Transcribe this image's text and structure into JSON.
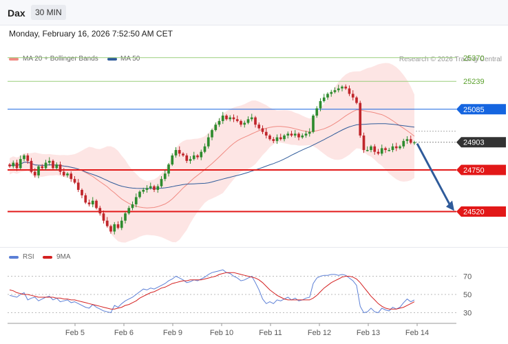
{
  "header": {
    "symbol": "Dax",
    "timeframe": "30 MIN",
    "timestamp": "Monday, February 16, 2026 7:52:50 AM CET"
  },
  "legend": {
    "ma20_label": "MA 20 + Bollinger Bands",
    "ma50_label": "MA 50",
    "credit": "Research © 2026 Trading Central",
    "rsi_label": "RSI",
    "rsi_ma_label": "9MA"
  },
  "colors": {
    "ma20": "#f08a82",
    "ma50": "#2f5b9a",
    "band_fill": "#fde0df",
    "up": "#2e8b2e",
    "down": "#c0262b",
    "rsi": "#5b7fd6",
    "rsi_ma": "#d42020",
    "arrow": "#2f5b9a"
  },
  "chart_data": [
    {
      "type": "candlestick",
      "title": "",
      "x_ticks": [
        "Feb 5",
        "Feb 6",
        "Feb 9",
        "Feb 10",
        "Feb 11",
        "Feb 12",
        "Feb 13",
        "Feb 14"
      ],
      "levels": [
        {
          "value": 25370,
          "label": "25370",
          "kind": "resistance-light",
          "color": "#9acd7a"
        },
        {
          "value": 25239,
          "label": "25239",
          "kind": "resistance-light",
          "color": "#9acd7a"
        },
        {
          "value": 25085,
          "label": "25085",
          "kind": "pivot",
          "color": "#1565e0"
        },
        {
          "value": 24903,
          "label": "24903",
          "kind": "last-price",
          "color": "#333333"
        },
        {
          "value": 24750,
          "label": "24750",
          "kind": "support",
          "color": "#e21818"
        },
        {
          "value": 24520,
          "label": "24520",
          "kind": "support",
          "color": "#e21818"
        }
      ],
      "forecast_arrow": {
        "from": 24903,
        "to": 24520,
        "direction": "down"
      },
      "closes": [
        24770,
        24790,
        24760,
        24810,
        24830,
        24800,
        24740,
        24720,
        24770,
        24760,
        24790,
        24800,
        24760,
        24780,
        24740,
        24720,
        24730,
        24700,
        24680,
        24640,
        24610,
        24570,
        24560,
        24580,
        24540,
        24510,
        24470,
        24440,
        24410,
        24450,
        24430,
        24470,
        24510,
        24540,
        24560,
        24600,
        24630,
        24640,
        24650,
        24660,
        24640,
        24660,
        24700,
        24730,
        24780,
        24830,
        24860,
        24840,
        24830,
        24800,
        24810,
        24830,
        24820,
        24850,
        24880,
        24930,
        24970,
        25000,
        25020,
        25050,
        25030,
        25040,
        25030,
        25020,
        25000,
        25010,
        25030,
        25040,
        25000,
        24980,
        24960,
        24940,
        24920,
        24910,
        24930,
        24920,
        24940,
        24950,
        24940,
        24950,
        24930,
        24940,
        24950,
        24960,
        25050,
        25090,
        25130,
        25150,
        25170,
        25180,
        25190,
        25200,
        25210,
        25200,
        25170,
        25150,
        25120,
        24940,
        24860,
        24860,
        24880,
        24850,
        24840,
        24870,
        24860,
        24860,
        24880,
        24870,
        24880,
        24910,
        24920,
        24900,
        24903
      ],
      "ylim": [
        24380,
        25450
      ]
    },
    {
      "type": "line",
      "title": "",
      "series": [
        {
          "name": "RSI",
          "values": [
            49,
            48,
            47,
            50,
            52,
            44,
            46,
            47,
            43,
            45,
            47,
            48,
            44,
            46,
            42,
            43,
            44,
            41,
            42,
            40,
            38,
            36,
            35,
            39,
            36,
            34,
            32,
            31,
            30,
            38,
            36,
            40,
            43,
            45,
            47,
            50,
            53,
            56,
            55,
            57,
            56,
            58,
            60,
            62,
            65,
            67,
            70,
            68,
            66,
            63,
            64,
            66,
            65,
            67,
            69,
            72,
            74,
            75,
            76,
            77,
            74,
            73,
            70,
            68,
            65,
            66,
            68,
            70,
            63,
            55,
            45,
            40,
            42,
            40,
            44,
            43,
            45,
            47,
            44,
            46,
            43,
            44,
            46,
            47,
            62,
            68,
            70,
            71,
            71,
            72,
            72,
            71,
            72,
            71,
            68,
            65,
            60,
            37,
            30,
            31,
            35,
            31,
            30,
            35,
            33,
            32,
            36,
            34,
            36,
            41,
            45,
            42,
            44
          ]
        },
        {
          "name": "9MA",
          "values": [
            55,
            54,
            52,
            51,
            50,
            50,
            49,
            48,
            47,
            47,
            47,
            47,
            47,
            46,
            46,
            45,
            45,
            44,
            44,
            43,
            42,
            41,
            40,
            39,
            38,
            37,
            36,
            35,
            34,
            34,
            35,
            36,
            38,
            39,
            41,
            43,
            46,
            48,
            50,
            52,
            53,
            55,
            57,
            58,
            60,
            62,
            63,
            64,
            65,
            65,
            66,
            66,
            66,
            66,
            67,
            68,
            69,
            70,
            72,
            73,
            74,
            74,
            74,
            73,
            72,
            71,
            70,
            69,
            68,
            66,
            63,
            59,
            55,
            52,
            49,
            47,
            45,
            44,
            44,
            44,
            44,
            44,
            44,
            44,
            46,
            49,
            53,
            57,
            60,
            63,
            65,
            67,
            69,
            70,
            70,
            69,
            67,
            63,
            58,
            53,
            48,
            44,
            40,
            37,
            35,
            34,
            34,
            34,
            35,
            36,
            38,
            40,
            42
          ]
        }
      ],
      "y_ticks": [
        70,
        50,
        30
      ],
      "ylim": [
        22,
        80
      ],
      "x_ticks": [
        "Feb 5",
        "Feb 6",
        "Feb 9",
        "Feb 10",
        "Feb 11",
        "Feb 12",
        "Feb 13",
        "Feb 14"
      ]
    }
  ]
}
